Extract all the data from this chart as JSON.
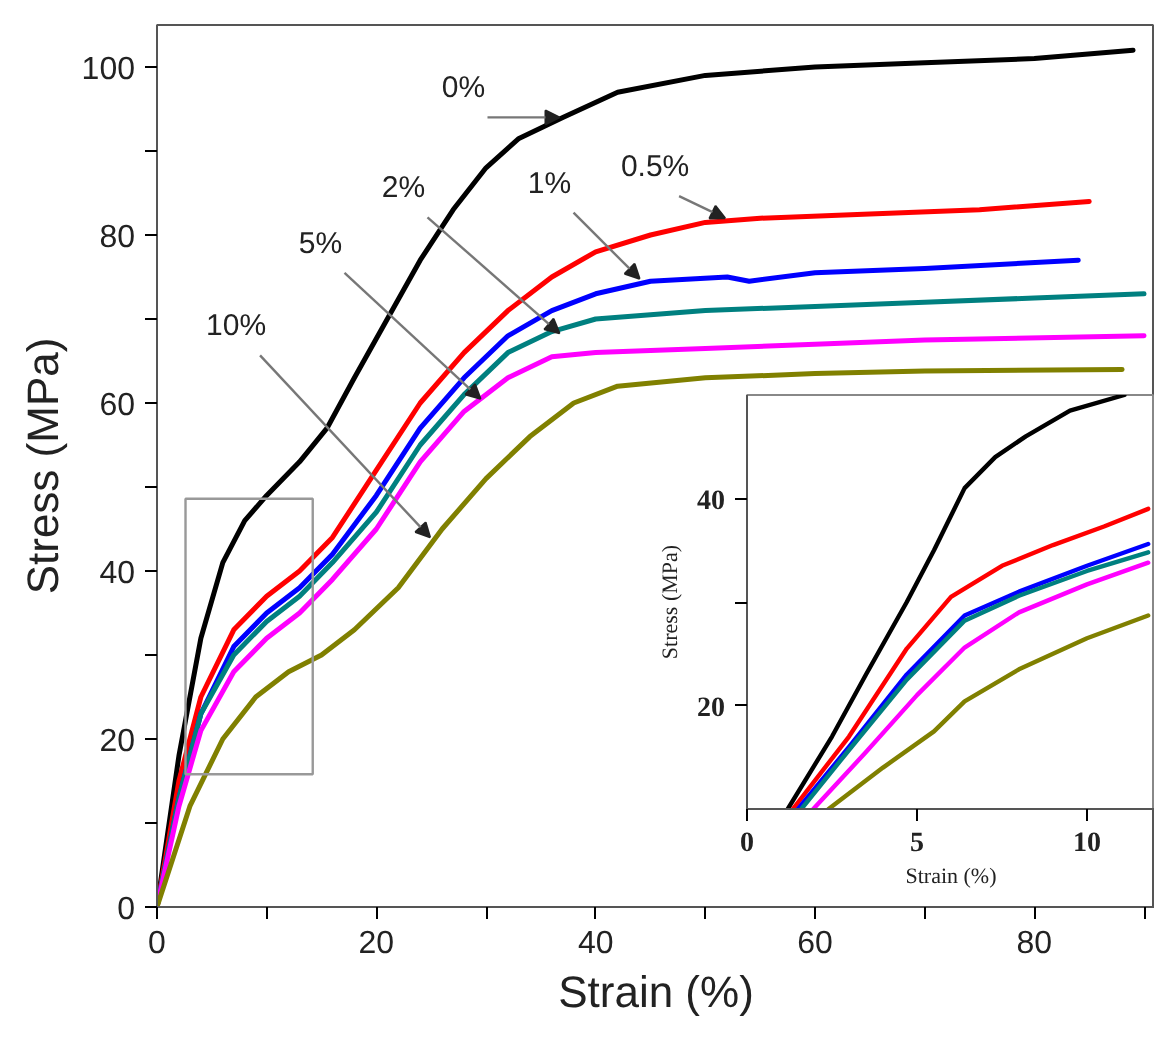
{
  "chart_data": [
    {
      "type": "line",
      "xlabel": "Strain (%)",
      "ylabel": "Stress (MPa)",
      "xlim": [
        0,
        91
      ],
      "ylim": [
        0,
        105
      ],
      "xticks": [
        0,
        {
          "value": 10,
          "label": null
        },
        20,
        {
          "value": 30,
          "label": null
        },
        40,
        {
          "value": 50,
          "label": null
        },
        60,
        {
          "value": 70,
          "label": null
        },
        80,
        {
          "value": 90,
          "label": null
        }
      ],
      "yticks": [
        0,
        {
          "value": 10,
          "label": null
        },
        20,
        {
          "value": 30,
          "label": null
        },
        40,
        {
          "value": 50,
          "label": null
        },
        60,
        {
          "value": 70,
          "label": null
        },
        80,
        {
          "value": 90,
          "label": null
        },
        100
      ],
      "grid": false,
      "marker": "none",
      "line_style": "solid",
      "series": [
        {
          "color": "#000000",
          "x": [
            0,
            2,
            4,
            6,
            8,
            10,
            13,
            15.5,
            18,
            21,
            24,
            27,
            30,
            33,
            37,
            42,
            50,
            60,
            70,
            80,
            89
          ],
          "values": [
            0,
            18,
            32,
            41,
            46,
            49,
            53,
            57,
            63,
            70,
            77,
            83,
            88,
            91.5,
            94,
            97,
            99,
            100,
            100.5,
            101,
            102
          ]
        },
        {
          "color": "#ff0000",
          "x": [
            0,
            2,
            4,
            7,
            10,
            13,
            16,
            20,
            24,
            28,
            32,
            36,
            40,
            45,
            50,
            55,
            65,
            75,
            85
          ],
          "values": [
            0,
            15,
            25,
            33,
            37,
            40,
            44,
            52,
            60,
            66,
            71,
            75,
            78,
            80,
            81.5,
            82,
            82.5,
            83,
            84
          ]
        },
        {
          "color": "#0000ff",
          "x": [
            0,
            2,
            4,
            7,
            10,
            13,
            16,
            20,
            24,
            28,
            32,
            36,
            40,
            45,
            52,
            54,
            60,
            70,
            84
          ],
          "values": [
            0,
            13,
            23,
            31,
            35,
            38,
            42,
            49,
            57,
            63,
            68,
            71,
            73,
            74.5,
            75,
            74.5,
            75.5,
            76,
            77
          ]
        },
        {
          "color": "#008080",
          "x": [
            0,
            2,
            4,
            7,
            10,
            13,
            16,
            20,
            24,
            28,
            32,
            36,
            40,
            50,
            60,
            70,
            80,
            90
          ],
          "values": [
            0,
            13,
            23,
            30,
            34,
            37,
            41,
            47,
            55,
            61,
            66,
            68.5,
            70,
            71,
            71.5,
            72,
            72.5,
            73
          ]
        },
        {
          "color": "#ff00ff",
          "x": [
            0,
            2,
            4,
            7,
            10,
            13,
            16,
            20,
            24,
            28,
            32,
            36,
            40,
            50,
            60,
            70,
            90
          ],
          "values": [
            0,
            12,
            21,
            28,
            32,
            35,
            39,
            45,
            53,
            59,
            63,
            65.5,
            66,
            66.5,
            67,
            67.5,
            68
          ]
        },
        {
          "color": "#808000",
          "x": [
            0,
            3,
            6,
            9,
            12,
            15,
            18,
            22,
            26,
            30,
            34,
            38,
            42,
            50,
            60,
            70,
            88
          ],
          "values": [
            0,
            12,
            20,
            25,
            28,
            30,
            33,
            38,
            45,
            51,
            56,
            60,
            62,
            63,
            63.5,
            63.8,
            64
          ]
        }
      ],
      "annotations": [
        {
          "text": "0%",
          "x": 36.7,
          "y": 94
        },
        {
          "text": "0.5%",
          "x": 51.8,
          "y": 82
        },
        {
          "text": "1%",
          "x": 44,
          "y": 74.8
        },
        {
          "text": "2%",
          "x": 36.7,
          "y": 68.3
        },
        {
          "text": "5%",
          "x": 29.5,
          "y": 60.5
        },
        {
          "text": "10%",
          "x": 24.9,
          "y": 44
        }
      ]
    },
    {
      "type": "line",
      "xlabel": "Strain (%)",
      "ylabel": "Stress (MPa)",
      "xlim": [
        0,
        12
      ],
      "ylim": [
        10,
        50
      ],
      "xticks": [
        0,
        5,
        10
      ],
      "yticks": [
        20,
        {
          "value": 30,
          "label": null
        },
        40
      ],
      "grid": false,
      "marker": "none",
      "line_style": "solid",
      "series": [
        {
          "color": "#000000",
          "x": [
            1.2,
            2.5,
            3.5,
            4.7,
            5.5,
            6.4,
            7.3,
            8.2,
            9.5,
            11.1
          ],
          "values": [
            10,
            17,
            23,
            30,
            35,
            41,
            44,
            46,
            48.5,
            50
          ]
        },
        {
          "color": "#ff0000",
          "x": [
            1.35,
            3,
            4.7,
            6,
            7.5,
            9,
            10.5,
            11.8
          ],
          "values": [
            10,
            17,
            25.5,
            30.5,
            33.5,
            35.5,
            37.3,
            39
          ]
        },
        {
          "color": "#0000ff",
          "x": [
            1.5,
            3,
            4.7,
            6.4,
            8,
            10,
            11.8
          ],
          "values": [
            10,
            16,
            23,
            28.7,
            31,
            33.5,
            35.6
          ]
        },
        {
          "color": "#008080",
          "x": [
            1.6,
            3,
            4.7,
            6.4,
            8,
            10,
            11.8
          ],
          "values": [
            10,
            15.7,
            22.5,
            28.2,
            30.6,
            33,
            34.8
          ]
        },
        {
          "color": "#ff00ff",
          "x": [
            1.95,
            3.5,
            5,
            6.4,
            8,
            10,
            11.8
          ],
          "values": [
            10,
            15.5,
            21,
            25.6,
            29,
            31.7,
            33.8
          ]
        },
        {
          "color": "#808000",
          "x": [
            2.4,
            4,
            5.5,
            6.4,
            8,
            10,
            11.8
          ],
          "values": [
            10,
            14,
            17.5,
            20.4,
            23.5,
            26.5,
            28.7
          ]
        }
      ]
    }
  ]
}
